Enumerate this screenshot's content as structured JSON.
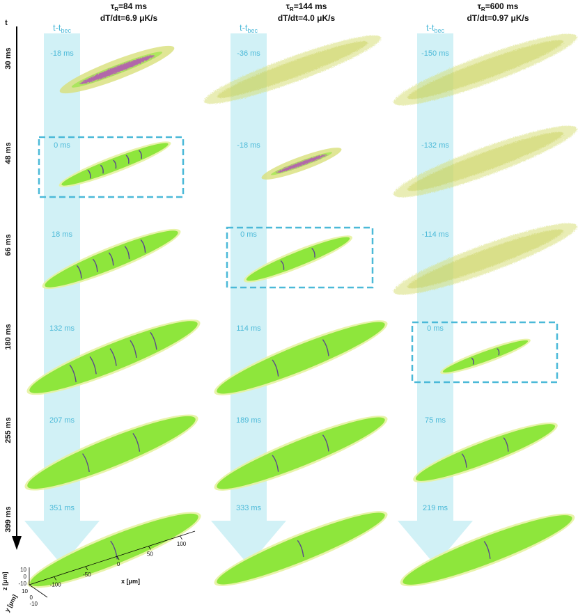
{
  "columns": [
    {
      "tau_label": "τ",
      "tau_sub": "R",
      "tau_value": "=84 ms",
      "rate": "dT/dt=6.9 μK/s",
      "arrow_label": "t-t",
      "arrow_sub": "bec",
      "offsets": [
        "-18 ms",
        "0 ms",
        "18 ms",
        "132 ms",
        "207 ms",
        "351 ms"
      ],
      "bec_row": 1
    },
    {
      "tau_label": "τ",
      "tau_sub": "R",
      "tau_value": "=144 ms",
      "rate": "dT/dt=4.0 μK/s",
      "arrow_label": "t-t",
      "arrow_sub": "bec",
      "offsets": [
        "-36 ms",
        "-18 ms",
        "0 ms",
        "114 ms",
        "189 ms",
        "333 ms"
      ],
      "bec_row": 2
    },
    {
      "tau_label": "τ",
      "tau_sub": "R",
      "tau_value": "=600 ms",
      "rate": "dT/dt=0.97 μK/s",
      "arrow_label": "t-t",
      "arrow_sub": "bec",
      "offsets": [
        "-150 ms",
        "-132 ms",
        "-114 ms",
        "0 ms",
        "75 ms",
        "219 ms"
      ],
      "bec_row": 3
    }
  ],
  "time_axis": {
    "label": "t",
    "rows": [
      "30 ms",
      "48 ms",
      "66 ms",
      "180 ms",
      "255 ms",
      "399 ms"
    ]
  },
  "axes_3d": {
    "x_label": "x [μm]",
    "y_label": "y [μm]",
    "z_label": "z [μm]",
    "x_ticks": [
      "-100",
      "-50",
      "0",
      "50",
      "100"
    ],
    "y_ticks": [
      "10",
      "0",
      "-10"
    ],
    "z_ticks": [
      "10",
      "0",
      "-10"
    ]
  },
  "colors": {
    "arrow": "#c9eef5",
    "text_accent": "#4bb9d8",
    "condensate": "#8ee63c",
    "thermal": "#d8e07a",
    "vortex": "#5a4a8a",
    "hot": "#b43cc4"
  }
}
